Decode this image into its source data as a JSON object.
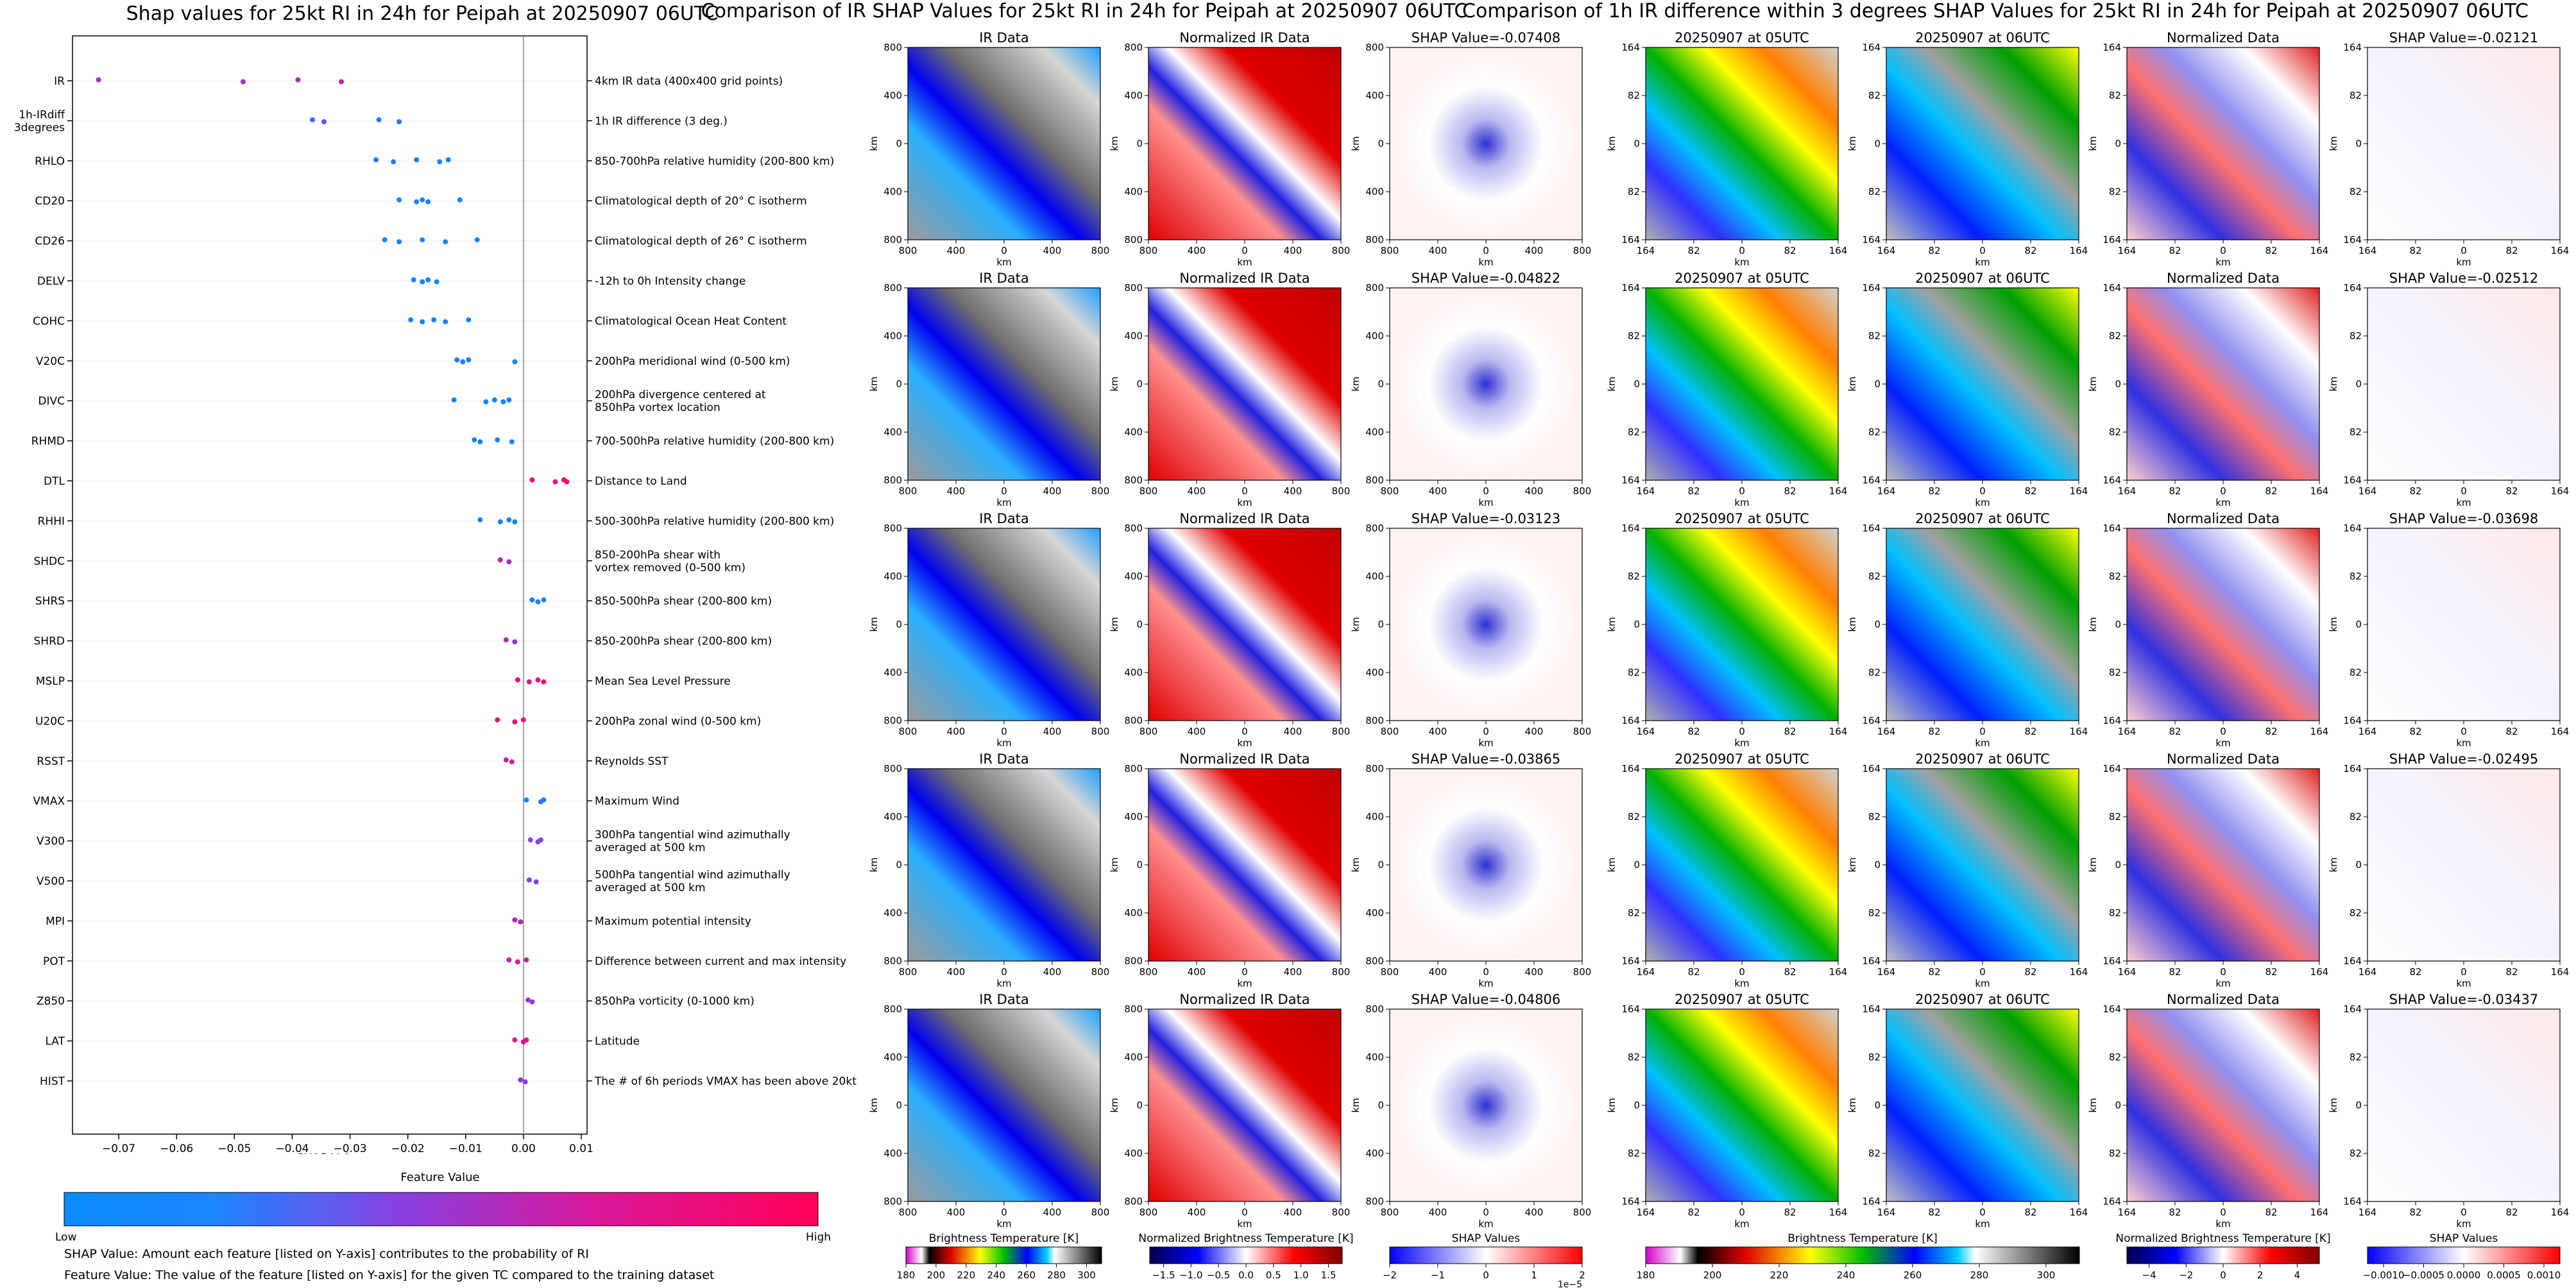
{
  "shap_title": "Shap values for 25kt RI in 24h for Peipah at 20250907 06UTC",
  "ir_title": "Comparison of IR SHAP Values for 25kt RI in 24h for Peipah at 20250907 06UTC",
  "diff_title": "Comparison of 1h IR difference within 3 degrees SHAP Values for 25kt RI in 24h for Peipah at 20250907 06UTC",
  "notes": {
    "line1": "SHAP Value: Amount each feature [listed on Y-axis] contributes to the probability of RI",
    "line2": "Feature Value: The value of the feature [listed on Y-axis] for the given TC compared to the training dataset"
  },
  "feature_colorbar": {
    "title": "Feature Value",
    "low": "Low",
    "high": "High",
    "low_color": "#0a8bff",
    "high_color": "#ff0058"
  },
  "colors": {
    "zero_line": "#888888",
    "grid": "#eeeeee"
  },
  "chart_data": [
    {
      "type": "scatter",
      "name": "beeswarm",
      "title": "Shap values for 25kt RI in 24h for Peipah at 20250907 06UTC",
      "xlabel": "SHAP Value",
      "xlim": [
        -0.078,
        0.011
      ],
      "xticks": [
        -0.07,
        -0.06,
        -0.05,
        -0.04,
        -0.03,
        -0.02,
        -0.01,
        0.0,
        0.01
      ],
      "xtick_labels": [
        "−0.07",
        "−0.06",
        "−0.05",
        "−0.04",
        "−0.03",
        "−0.02",
        "−0.01",
        "0.00",
        "0.01"
      ],
      "features": [
        {
          "name": "IR",
          "desc": [
            "4km IR data (400x400 grid points)"
          ],
          "points": [
            [
              -0.0735,
              0.6
            ],
            [
              -0.0485,
              0.62
            ],
            [
              -0.039,
              0.65
            ],
            [
              -0.0315,
              0.7
            ]
          ]
        },
        {
          "name": "1h-IRdiff\n3degrees",
          "desc": [
            "1h IR difference (3 deg.)"
          ],
          "points": [
            [
              -0.0365,
              0.2
            ],
            [
              -0.0345,
              0.3
            ],
            [
              -0.025,
              0.1
            ],
            [
              -0.0215,
              0.12
            ]
          ]
        },
        {
          "name": "RHLO",
          "desc": [
            "850-700hPa relative humidity (200-800 km)"
          ],
          "points": [
            [
              -0.0255,
              0.05
            ],
            [
              -0.0225,
              0.05
            ],
            [
              -0.0185,
              0.05
            ],
            [
              -0.0145,
              0.05
            ],
            [
              -0.013,
              0.05
            ]
          ]
        },
        {
          "name": "CD20",
          "desc": [
            "Climatological depth of 20° C isotherm"
          ],
          "points": [
            [
              -0.0215,
              0.05
            ],
            [
              -0.0185,
              0.05
            ],
            [
              -0.0175,
              0.05
            ],
            [
              -0.0165,
              0.05
            ],
            [
              -0.011,
              0.05
            ]
          ]
        },
        {
          "name": "CD26",
          "desc": [
            "Climatological depth of 26° C isotherm"
          ],
          "points": [
            [
              -0.024,
              0.05
            ],
            [
              -0.0215,
              0.05
            ],
            [
              -0.0175,
              0.05
            ],
            [
              -0.0135,
              0.05
            ],
            [
              -0.008,
              0.05
            ]
          ]
        },
        {
          "name": "DELV",
          "desc": [
            "-12h to 0h Intensity change"
          ],
          "points": [
            [
              -0.019,
              0.05
            ],
            [
              -0.0175,
              0.05
            ],
            [
              -0.0165,
              0.05
            ],
            [
              -0.015,
              0.05
            ]
          ]
        },
        {
          "name": "COHC",
          "desc": [
            "Climatological Ocean Heat Content"
          ],
          "points": [
            [
              -0.0195,
              0.05
            ],
            [
              -0.0175,
              0.05
            ],
            [
              -0.0155,
              0.05
            ],
            [
              -0.0135,
              0.05
            ],
            [
              -0.0095,
              0.05
            ]
          ]
        },
        {
          "name": "V20C",
          "desc": [
            "200hPa meridional wind (0-500 km)"
          ],
          "points": [
            [
              -0.0115,
              0.05
            ],
            [
              -0.0105,
              0.05
            ],
            [
              -0.0095,
              0.05
            ],
            [
              -0.0015,
              0.05
            ]
          ]
        },
        {
          "name": "DIVC",
          "desc": [
            "200hPa divergence centered at",
            "850hPa vortex location"
          ],
          "points": [
            [
              -0.012,
              0.05
            ],
            [
              -0.0065,
              0.05
            ],
            [
              -0.005,
              0.05
            ],
            [
              -0.0035,
              0.05
            ],
            [
              -0.0025,
              0.05
            ]
          ]
        },
        {
          "name": "RHMD",
          "desc": [
            "700-500hPa relative humidity (200-800 km)"
          ],
          "points": [
            [
              -0.0085,
              0.05
            ],
            [
              -0.0075,
              0.05
            ],
            [
              -0.0045,
              0.05
            ],
            [
              -0.002,
              0.05
            ]
          ]
        },
        {
          "name": "DTL",
          "desc": [
            "Distance to Land"
          ],
          "points": [
            [
              0.0015,
              0.85
            ],
            [
              0.0055,
              0.88
            ],
            [
              0.007,
              0.8
            ],
            [
              0.0075,
              0.9
            ]
          ]
        },
        {
          "name": "RHHI",
          "desc": [
            "500-300hPa relative humidity (200-800 km)"
          ],
          "points": [
            [
              -0.0075,
              0.05
            ],
            [
              -0.004,
              0.05
            ],
            [
              -0.0025,
              0.05
            ],
            [
              -0.0015,
              0.05
            ]
          ]
        },
        {
          "name": "SHDC",
          "desc": [
            "850-200hPa shear with",
            "vortex removed (0-500 km)"
          ],
          "points": [
            [
              -0.004,
              0.7
            ],
            [
              -0.0025,
              0.6
            ]
          ]
        },
        {
          "name": "SHRS",
          "desc": [
            "850-500hPa shear (200-800 km)"
          ],
          "points": [
            [
              0.0015,
              0.05
            ],
            [
              0.0025,
              0.05
            ],
            [
              0.0035,
              0.05
            ]
          ]
        },
        {
          "name": "SHRD",
          "desc": [
            "850-200hPa shear (200-800 km)"
          ],
          "points": [
            [
              -0.003,
              0.65
            ],
            [
              -0.0015,
              0.6
            ]
          ]
        },
        {
          "name": "MSLP",
          "desc": [
            "Mean Sea Level Pressure"
          ],
          "points": [
            [
              -0.001,
              0.9
            ],
            [
              0.001,
              0.85
            ],
            [
              0.0025,
              0.88
            ],
            [
              0.0035,
              0.9
            ]
          ]
        },
        {
          "name": "U20C",
          "desc": [
            "200hPa zonal wind (0-500 km)"
          ],
          "points": [
            [
              -0.0045,
              0.85
            ],
            [
              -0.0015,
              0.85
            ],
            [
              0.0,
              0.85
            ]
          ]
        },
        {
          "name": "RSST",
          "desc": [
            "Reynolds SST"
          ],
          "points": [
            [
              -0.003,
              0.75
            ],
            [
              -0.002,
              0.7
            ]
          ]
        },
        {
          "name": "VMAX",
          "desc": [
            "Maximum Wind"
          ],
          "points": [
            [
              0.0005,
              0.05
            ],
            [
              0.003,
              0.1
            ],
            [
              0.0035,
              0.1
            ]
          ]
        },
        {
          "name": "V300",
          "desc": [
            "300hPa tangential wind azimuthally",
            "averaged at 500 km"
          ],
          "points": [
            [
              0.0012,
              0.5
            ],
            [
              0.0025,
              0.45
            ],
            [
              0.003,
              0.4
            ]
          ]
        },
        {
          "name": "V500",
          "desc": [
            "500hPa tangential wind azimuthally",
            "averaged at 500 km"
          ],
          "points": [
            [
              0.001,
              0.5
            ],
            [
              0.0022,
              0.45
            ]
          ]
        },
        {
          "name": "MPI",
          "desc": [
            "Maximum potential intensity"
          ],
          "points": [
            [
              -0.0015,
              0.7
            ],
            [
              -0.0005,
              0.72
            ]
          ]
        },
        {
          "name": "POT",
          "desc": [
            "Difference between current and max intensity"
          ],
          "points": [
            [
              -0.0025,
              0.7
            ],
            [
              -0.001,
              0.72
            ],
            [
              0.0005,
              0.7
            ]
          ]
        },
        {
          "name": "Z850",
          "desc": [
            "850hPa vorticity (0-1000 km)"
          ],
          "points": [
            [
              0.0008,
              0.5
            ],
            [
              0.0015,
              0.55
            ]
          ]
        },
        {
          "name": "LAT",
          "desc": [
            "Latitude"
          ],
          "points": [
            [
              -0.0015,
              0.85
            ],
            [
              0.0,
              0.85
            ],
            [
              0.0005,
              0.8
            ]
          ]
        },
        {
          "name": "HIST",
          "desc": [
            "The # of 6h periods VMAX has been above 20kt"
          ],
          "points": [
            [
              -0.0005,
              0.5
            ],
            [
              0.0003,
              0.5
            ]
          ]
        }
      ]
    },
    {
      "type": "heatmap",
      "name": "ir_shap_grid",
      "columns": [
        {
          "key": "ir",
          "title": "IR Data"
        },
        {
          "key": "nir",
          "title": "Normalized IR Data"
        },
        {
          "key": "shap",
          "title_prefix": "SHAP Value="
        }
      ],
      "shap_values": [
        "-0.07408",
        "-0.04822",
        "-0.03123",
        "-0.03865",
        "-0.04806"
      ],
      "axis_label": "km",
      "xtick_labels": [
        "800",
        "400",
        "0",
        "400",
        "800"
      ],
      "ytick_labels": [
        "800",
        "400",
        "0",
        "400",
        "800"
      ],
      "colorbars": [
        {
          "label": "Brightness Temperature [K]",
          "ticks": [
            "180",
            "200",
            "220",
            "240",
            "260",
            "280",
            "300"
          ],
          "range": [
            180,
            310
          ]
        },
        {
          "label": "Normalized Brightness Temperature [K]",
          "ticks": [
            "−1.5",
            "−1.0",
            "−0.5",
            "0.0",
            "0.5",
            "1.0",
            "1.5"
          ],
          "range": [
            -1.75,
            1.75
          ]
        },
        {
          "label": "SHAP Values",
          "ticks": [
            "−2",
            "−1",
            "0",
            "1",
            "2"
          ],
          "range": [
            -2,
            2
          ],
          "offset": "1e−5"
        }
      ]
    },
    {
      "type": "heatmap",
      "name": "irdiff_shap_grid",
      "columns": [
        {
          "key": "t05",
          "title": "20250907 at 05UTC"
        },
        {
          "key": "t06",
          "title": "20250907 at 06UTC"
        },
        {
          "key": "nd",
          "title": "Normalized Data"
        },
        {
          "key": "shap",
          "title_prefix": "SHAP Value="
        }
      ],
      "shap_values": [
        "-0.02121",
        "-0.02512",
        "-0.03698",
        "-0.02495",
        "-0.03437"
      ],
      "axis_label": "km",
      "xtick_labels": [
        "164",
        "82",
        "0",
        "82",
        "164"
      ],
      "ytick_labels": [
        "164",
        "82",
        "0",
        "82",
        "164"
      ],
      "colorbars": [
        {
          "label": "Brightness Temperature [K]",
          "ticks": [
            "180",
            "200",
            "220",
            "240",
            "260",
            "280",
            "300"
          ],
          "range": [
            180,
            310
          ]
        },
        {
          "label": "Normalized Brightness Temperature [K]",
          "ticks": [
            "−4",
            "−2",
            "0",
            "2",
            "4"
          ],
          "range": [
            -5.2,
            5.2
          ]
        },
        {
          "label": "SHAP Values",
          "ticks": [
            "−0.0010",
            "−0.0005",
            "0.0000",
            "0.0005",
            "0.0010"
          ],
          "range": [
            -0.0012,
            0.0012
          ]
        }
      ]
    }
  ]
}
